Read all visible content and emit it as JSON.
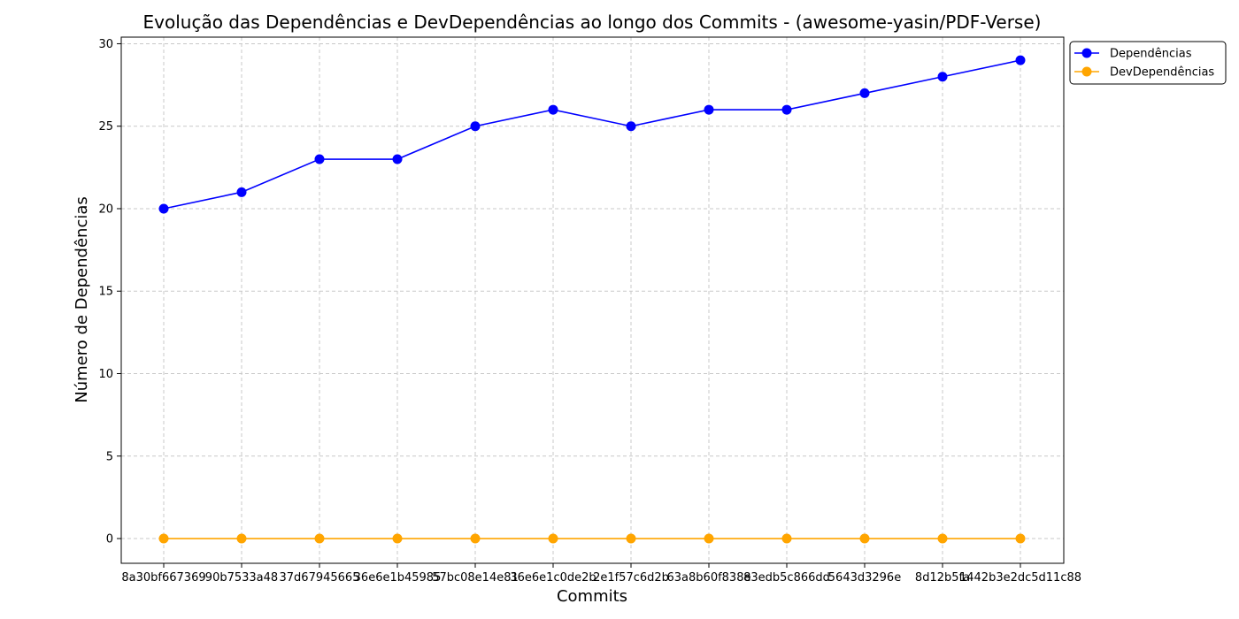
{
  "chart_data": {
    "type": "line",
    "title": "Evolução das Dependências e DevDependências ao longo dos Commits - (awesome-yasin/PDF-Verse)",
    "xlabel": "Commits",
    "ylabel": "Número de Dependências",
    "categories": [
      "8a30bf667369",
      "90b7533a48",
      "37d67945665",
      "36e6e1b45985",
      "57bc08e14e81",
      "36e6e1c0de2b",
      "2e1f57c6d2b",
      "63a8b60f838e",
      "83edb5c866dd",
      "5643d3296e",
      "8d12b5fa",
      "1442b3e2dc5d11c88"
    ],
    "tick_labels_full": "8a30bf667369 90b7533a48 37d67945665 36e6e1b45985 57bc08e14e81 36e6e1c0de2b 2e1f57c6d2b 63a8b60f838e 83edb5c866dd 5643d3296e 8d12b5fa 1442b3e2dc5d11c88",
    "ylim": [
      -1.5,
      30.4
    ],
    "yticks": [
      0,
      5,
      10,
      15,
      20,
      25,
      30
    ],
    "grid": true,
    "legend_position": "upper-right-outside",
    "series": [
      {
        "name": "Dependências",
        "color": "#0000ff",
        "values": [
          20,
          21,
          23,
          23,
          25,
          26,
          25,
          26,
          26,
          27,
          28,
          29
        ]
      },
      {
        "name": "DevDependências",
        "color": "#ffa500",
        "values": [
          0,
          0,
          0,
          0,
          0,
          0,
          0,
          0,
          0,
          0,
          0,
          0
        ]
      }
    ]
  }
}
